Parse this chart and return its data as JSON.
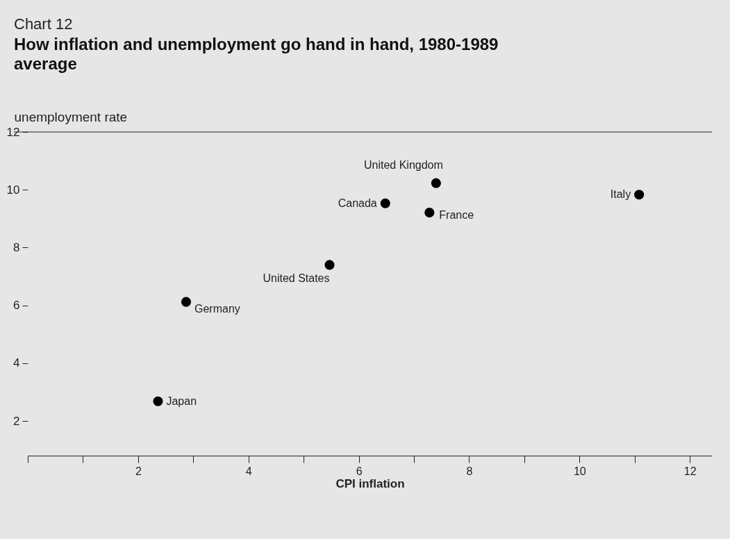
{
  "chart_data": {
    "type": "scatter",
    "subtitle": "Chart 12",
    "title": "How inflation and unemployment go hand in hand, 1980-1989 average",
    "xlabel": "CPI inflation",
    "ylabel": "unemployment rate",
    "xlim": [
      0,
      12.4
    ],
    "ylim": [
      0.8,
      12
    ],
    "xticks": [
      {
        "value": 0,
        "label": null
      },
      {
        "value": 1,
        "label": null
      },
      2,
      {
        "value": 3,
        "label": null
      },
      4,
      {
        "value": 5,
        "label": null
      },
      6,
      {
        "value": 7,
        "label": null
      },
      8,
      {
        "value": 9,
        "label": null
      },
      10,
      {
        "value": 11,
        "label": null
      },
      12
    ],
    "yticks": [
      2,
      4,
      6,
      8,
      10,
      12
    ],
    "marker": "circle",
    "grid": false,
    "legend": false,
    "series": [
      {
        "name": "Japan",
        "color": "#000000",
        "x": [
          2.36
        ],
        "values": [
          2.68
        ]
      },
      {
        "name": "Germany",
        "color": "#000000",
        "x": [
          2.87
        ],
        "values": [
          6.12
        ]
      },
      {
        "name": "United States",
        "color": "#000000",
        "x": [
          5.47
        ],
        "values": [
          7.4
        ]
      },
      {
        "name": "Canada",
        "color": "#000000",
        "x": [
          6.48
        ],
        "values": [
          9.53
        ]
      },
      {
        "name": "United Kingdom",
        "color": "#000000",
        "x": [
          7.4
        ],
        "values": [
          10.23
        ]
      },
      {
        "name": "France",
        "color": "#000000",
        "x": [
          7.28
        ],
        "values": [
          9.21
        ]
      },
      {
        "name": "Italy",
        "color": "#000000",
        "x": [
          11.08
        ],
        "values": [
          9.83
        ]
      }
    ]
  }
}
